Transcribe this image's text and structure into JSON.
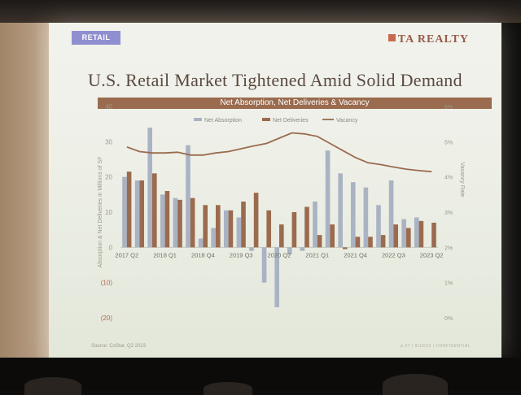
{
  "slide": {
    "section_tag": "RETAIL",
    "brand": "TA REALTY",
    "title": "U.S. Retail Market Tightened Amid Solid Demand",
    "source": "Source: CoStar, Q2 2023",
    "footer": "p.27 | 9/13/23 | CONFIDENTIAL"
  },
  "colors": {
    "absorption": "#a9b3c3",
    "deliveries": "#9a6b4e",
    "vacancy": "#9a6b4e",
    "banner": "#9a6b4e",
    "tag": "#8f8fcf"
  },
  "chart_data": {
    "type": "bar",
    "title": "Net Absorption, Net Deliveries & Vacancy",
    "ylabel": "Absorption & Net Deliveries in Millions of SF",
    "y2label": "Vacancy Rate",
    "ylim": [
      -20,
      40
    ],
    "y_ticks": [
      "40",
      "30",
      "20",
      "10",
      "0",
      "(10)",
      "(20)"
    ],
    "y2lim": [
      0,
      6
    ],
    "y2_ticks": [
      "6%",
      "5%",
      "4%",
      "3%",
      "2%",
      "1%",
      "0%"
    ],
    "legend": [
      "Net Absorption",
      "Net Deliveries",
      "Vacancy"
    ],
    "legend_position": "top",
    "x_tick_labels": [
      "2017 Q2",
      "2018 Q1",
      "2018 Q4",
      "2019 Q3",
      "2020 Q2",
      "2021 Q1",
      "2021 Q4",
      "2022 Q3",
      "2023 Q2"
    ],
    "categories": [
      "2017 Q2",
      "2017 Q3",
      "2017 Q4",
      "2018 Q1",
      "2018 Q2",
      "2018 Q3",
      "2018 Q4",
      "2019 Q1",
      "2019 Q2",
      "2019 Q3",
      "2019 Q4",
      "2020 Q1",
      "2020 Q2",
      "2020 Q3",
      "2020 Q4",
      "2021 Q1",
      "2021 Q2",
      "2021 Q3",
      "2021 Q4",
      "2022 Q1",
      "2022 Q2",
      "2022 Q3",
      "2022 Q4",
      "2023 Q1",
      "2023 Q2"
    ],
    "series": [
      {
        "name": "Net Absorption",
        "type": "bar",
        "axis": "left",
        "values": [
          20,
          19,
          34,
          15,
          14,
          29,
          2.5,
          5.5,
          10.5,
          8.5,
          -1,
          -10,
          -17,
          -2,
          -1,
          13,
          27.5,
          21,
          18.5,
          17,
          12,
          19,
          8,
          8.5,
          null
        ]
      },
      {
        "name": "Net Deliveries",
        "type": "bar",
        "axis": "left",
        "values": [
          21.5,
          19,
          21,
          16,
          13.5,
          14,
          12,
          12,
          10.5,
          13,
          15.5,
          10.5,
          6.5,
          10,
          11.5,
          3.5,
          6.5,
          -0.5,
          3,
          3,
          3.5,
          6.5,
          5.5,
          7.5,
          7
        ]
      },
      {
        "name": "Vacancy",
        "type": "line",
        "axis": "right",
        "values": [
          4.85,
          4.72,
          4.68,
          4.68,
          4.7,
          4.62,
          4.62,
          4.68,
          4.72,
          4.8,
          4.88,
          4.95,
          5.1,
          5.25,
          5.22,
          5.15,
          4.95,
          4.75,
          4.55,
          4.4,
          4.35,
          4.28,
          4.22,
          4.18,
          4.15
        ]
      }
    ]
  }
}
